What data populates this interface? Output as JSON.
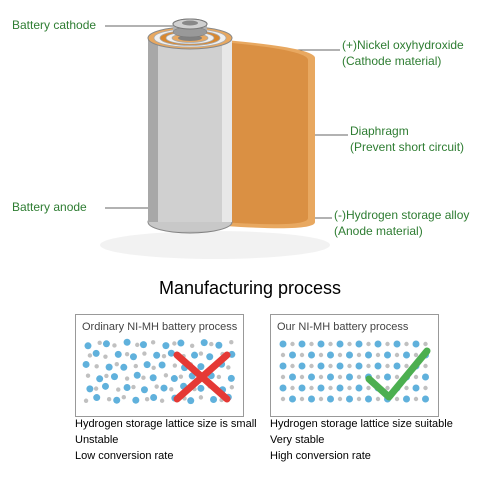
{
  "labels": {
    "cathode": "Battery cathode",
    "anode": "Battery anode",
    "nickel_line1": "(+)Nickel oxyhydroxide",
    "nickel_line2": "(Cathode material)",
    "diaphragm_line1": "Diaphragm",
    "diaphragm_line2": "(Prevent short circuit)",
    "hydrogen_line1": "(-)Hydrogen storage alloy",
    "hydrogen_line2": "(Anode material)"
  },
  "heading": "Manufacturing process",
  "left_panel": {
    "title": "Ordinary NI-MH battery process",
    "line1": "Hydrogen storage lattice size is small",
    "line2": "Unstable",
    "line3": "Low conversion rate"
  },
  "right_panel": {
    "title": "Our NI-MH battery process",
    "line1": "Hydrogen storage lattice size suitable",
    "line2": "Very stable",
    "line3": "High conversion rate"
  },
  "colors": {
    "green": "#2e7d32",
    "orange_light": "#e8a860",
    "orange_dark": "#d88830",
    "silver": "#c0c0c0",
    "silver_dark": "#909090",
    "dot_blue": "#4fa8d8",
    "dot_gray": "#b0b0b0",
    "cross": "#e53935",
    "check": "#4caf50"
  }
}
